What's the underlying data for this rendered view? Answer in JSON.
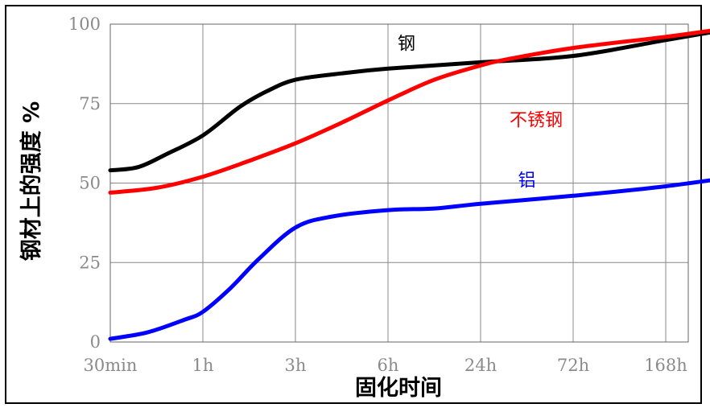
{
  "chart_data": {
    "type": "line",
    "title": "",
    "xlabel": "固化时间",
    "ylabel": "钢材上的强度 %",
    "x": [
      "30min",
      "1h",
      "3h",
      "6h",
      "24h",
      "72h",
      "168h"
    ],
    "ylim": [
      0,
      100
    ],
    "yticks": [
      "0",
      "25",
      "50",
      "75",
      "100"
    ],
    "grid": true,
    "series": [
      {
        "name": "钢",
        "color": "#000000",
        "points": [
          [
            0,
            54
          ],
          [
            0.3,
            55
          ],
          [
            0.6,
            59
          ],
          [
            1.0,
            65
          ],
          [
            1.4,
            74
          ],
          [
            1.7,
            79
          ],
          [
            2.0,
            82.5
          ],
          [
            2.5,
            84.5
          ],
          [
            3.0,
            86
          ],
          [
            4.0,
            88
          ],
          [
            5.0,
            90
          ],
          [
            6.0,
            95
          ],
          [
            6.5,
            97.5
          ],
          [
            7.0,
            100
          ]
        ]
      },
      {
        "name": "不锈钢",
        "color": "#ff0000",
        "points": [
          [
            0,
            47
          ],
          [
            0.5,
            48.5
          ],
          [
            1.0,
            52
          ],
          [
            1.5,
            57
          ],
          [
            2.0,
            62.5
          ],
          [
            2.5,
            69
          ],
          [
            3.0,
            76
          ],
          [
            3.5,
            82.5
          ],
          [
            4.0,
            87
          ],
          [
            4.3,
            89
          ],
          [
            5.0,
            92.5
          ],
          [
            6.0,
            96
          ],
          [
            6.5,
            98
          ],
          [
            7.0,
            100
          ]
        ]
      },
      {
        "name": "铝",
        "color": "#0000ff",
        "points": [
          [
            0,
            1
          ],
          [
            0.4,
            3
          ],
          [
            0.8,
            7
          ],
          [
            1.0,
            9.5
          ],
          [
            1.3,
            17
          ],
          [
            1.6,
            26
          ],
          [
            2.0,
            36
          ],
          [
            2.4,
            39.5
          ],
          [
            3.0,
            41.5
          ],
          [
            3.5,
            42
          ],
          [
            4.0,
            43.5
          ],
          [
            5.0,
            46
          ],
          [
            6.0,
            49
          ],
          [
            7.0,
            53
          ]
        ]
      }
    ],
    "annotations": [
      {
        "text": "钢",
        "color": "#000000",
        "x": 3.2,
        "y": 92
      },
      {
        "text": "不锈钢",
        "color": "#ff0000",
        "x": 4.6,
        "y": 68
      },
      {
        "text": "铝",
        "color": "#0000ff",
        "x": 4.5,
        "y": 49
      }
    ]
  }
}
